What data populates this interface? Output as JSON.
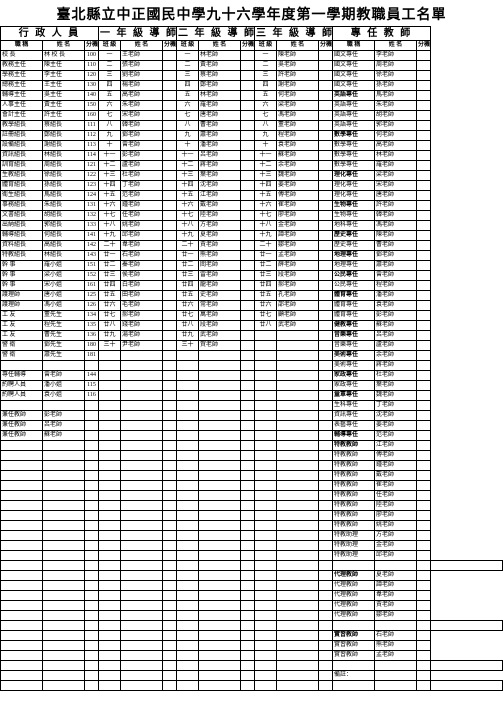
{
  "title": "臺北縣立中正國民中學九十六學年度第一學期教職員工名單",
  "sections": [
    "行 政 人 員",
    "一 年 級 導 師",
    "二 年 級 導 師",
    "三 年 級 導 師",
    "專 任 教 師"
  ],
  "headers": [
    "職 稱",
    "姓 名",
    "分機",
    "班 級",
    "姓 名",
    "分機",
    "班 級",
    "姓 名",
    "分機",
    "班 級",
    "姓 名",
    "分機",
    "職 稱",
    "姓 名",
    "分機"
  ],
  "rows": [
    [
      "校 長",
      "林 校 長",
      "100",
      "一",
      "王老師",
      "",
      "一",
      "林老師",
      "",
      "一",
      "陳老師",
      "",
      "國文專任",
      "李老師",
      ""
    ],
    [
      "教務主任",
      "陳主任",
      "110",
      "二",
      "張老師",
      "",
      "二",
      "黃老師",
      "",
      "二",
      "吳老師",
      "",
      "國文專任",
      "周老師",
      ""
    ],
    [
      "學務主任",
      "李主任",
      "120",
      "三",
      "劉老師",
      "",
      "三",
      "蔡老師",
      "",
      "三",
      "許老師",
      "",
      "國文專任",
      "徐老師",
      ""
    ],
    [
      "總務主任",
      "王主任",
      "130",
      "四",
      "楊老師",
      "",
      "四",
      "鄭老師",
      "",
      "四",
      "謝老師",
      "",
      "國文專任",
      "孫老師",
      ""
    ],
    [
      "輔導主任",
      "吳主任",
      "140",
      "五",
      "高老師",
      "",
      "五",
      "林老師",
      "",
      "五",
      "何老師",
      "",
      "英語專任",
      "馬老師",
      ""
    ],
    [
      "人事主任",
      "黃主任",
      "150",
      "六",
      "朱老師",
      "",
      "六",
      "羅老師",
      "",
      "六",
      "梁老師",
      "",
      "英語專任",
      "朱老師",
      ""
    ],
    [
      "會計主任",
      "許主任",
      "160",
      "七",
      "宋老師",
      "",
      "七",
      "唐老師",
      "",
      "七",
      "馮老師",
      "",
      "英語專任",
      "胡老師",
      ""
    ],
    [
      "教學組長",
      "蔡組長",
      "111",
      "八",
      "韓老師",
      "",
      "八",
      "曹老師",
      "",
      "八",
      "董老師",
      "",
      "英語專任",
      "郭老師",
      ""
    ],
    [
      "註冊組長",
      "鄭組長",
      "112",
      "九",
      "鄧老師",
      "",
      "九",
      "蕭老師",
      "",
      "九",
      "程老師",
      "",
      "數學專任",
      "何老師",
      ""
    ],
    [
      "設備組長",
      "謝組長",
      "113",
      "十",
      "曾老師",
      "",
      "十",
      "潘老師",
      "",
      "十",
      "袁老師",
      "",
      "數學專任",
      "高老師",
      ""
    ],
    [
      "資訊組長",
      "林組長",
      "114",
      "十一",
      "彭老師",
      "",
      "十一",
      "呂老師",
      "",
      "十一",
      "蘇老師",
      "",
      "數學專任",
      "林老師",
      ""
    ],
    [
      "訓育組長",
      "周組長",
      "121",
      "十二",
      "盧老師",
      "",
      "十二",
      "蔣老師",
      "",
      "十二",
      "余老師",
      "",
      "數學專任",
      "羅老師",
      ""
    ],
    [
      "生教組長",
      "徐組長",
      "122",
      "十三",
      "杜老師",
      "",
      "十三",
      "葉老師",
      "",
      "十三",
      "魏老師",
      "",
      "理化專任",
      "梁老師",
      ""
    ],
    [
      "體育組長",
      "孫組長",
      "123",
      "十四",
      "丁老師",
      "",
      "十四",
      "沈老師",
      "",
      "十四",
      "姜老師",
      "",
      "理化專任",
      "宋老師",
      ""
    ],
    [
      "衛生組長",
      "馬組長",
      "124",
      "十五",
      "范老師",
      "",
      "十五",
      "江老師",
      "",
      "十五",
      "傅老師",
      "",
      "理化專任",
      "唐老師",
      ""
    ],
    [
      "事務組長",
      "朱組長",
      "131",
      "十六",
      "鍾老師",
      "",
      "十六",
      "戴老師",
      "",
      "十六",
      "崔老師",
      "",
      "生物專任",
      "許老師",
      ""
    ],
    [
      "文書組長",
      "胡組長",
      "132",
      "十七",
      "任老師",
      "",
      "十七",
      "陸老師",
      "",
      "十七",
      "廖老師",
      "",
      "生物專任",
      "韓老師",
      ""
    ],
    [
      "出納組長",
      "郭組長",
      "133",
      "十八",
      "姚老師",
      "",
      "十八",
      "方老師",
      "",
      "十八",
      "金老師",
      "",
      "地科專任",
      "馮老師",
      ""
    ],
    [
      "輔導組長",
      "何組長",
      "141",
      "十九",
      "邱老師",
      "",
      "十九",
      "夏老師",
      "",
      "十九",
      "譚老師",
      "",
      "歷史專任",
      "陳老師",
      ""
    ],
    [
      "資料組長",
      "高組長",
      "142",
      "二十",
      "韋老師",
      "",
      "二十",
      "賈老師",
      "",
      "二十",
      "鄒老師",
      "",
      "歷史專任",
      "曹老師",
      ""
    ],
    [
      "特教組長",
      "林組長",
      "143",
      "廿一",
      "石老師",
      "",
      "廿一",
      "熊老師",
      "",
      "廿一",
      "孟老師",
      "",
      "地理專任",
      "鄧老師",
      ""
    ],
    [
      "幹 事",
      "羅小姐",
      "151",
      "廿二",
      "秦老師",
      "",
      "廿二",
      "閻老師",
      "",
      "廿二",
      "薛老師",
      "",
      "地理專任",
      "蕭老師",
      ""
    ],
    [
      "幹 事",
      "梁小姐",
      "152",
      "廿三",
      "侯老師",
      "",
      "廿三",
      "雷老師",
      "",
      "廿三",
      "段老師",
      "",
      "公民專任",
      "曾老師",
      ""
    ],
    [
      "幹 事",
      "宋小姐",
      "161",
      "廿四",
      "白老師",
      "",
      "廿四",
      "龍老師",
      "",
      "廿四",
      "郝老師",
      "",
      "公民專任",
      "程老師",
      ""
    ],
    [
      "護理師",
      "唐小姐",
      "125",
      "廿五",
      "田老師",
      "",
      "廿五",
      "史老師",
      "",
      "廿五",
      "孔老師",
      "",
      "體育專任",
      "潘老師",
      ""
    ],
    [
      "護理師",
      "馮小姐",
      "126",
      "廿六",
      "毛老師",
      "",
      "廿六",
      "常老師",
      "",
      "廿六",
      "邵老師",
      "",
      "體育專任",
      "袁老師",
      ""
    ],
    [
      "工 友",
      "董先生",
      "134",
      "廿七",
      "郝老師",
      "",
      "廿七",
      "萬老師",
      "",
      "廿七",
      "顧老師",
      "",
      "體育專任",
      "彭老師",
      ""
    ],
    [
      "工 友",
      "程先生",
      "135",
      "廿八",
      "錢老師",
      "",
      "廿八",
      "段老師",
      "",
      "廿八",
      "武老師",
      "",
      "健教專任",
      "蘇老師",
      ""
    ],
    [
      "工 友",
      "曹先生",
      "136",
      "廿九",
      "湯老師",
      "",
      "廿九",
      "武老師",
      "",
      "",
      "",
      "",
      "音樂專任",
      "呂老師",
      ""
    ],
    [
      "警 衛",
      "鄧先生",
      "180",
      "三十",
      "尹老師",
      "",
      "三十",
      "賀老師",
      "",
      "",
      "",
      "",
      "音樂專任",
      "盧老師",
      ""
    ],
    [
      "警 衛",
      "蕭先生",
      "181",
      "",
      "",
      "",
      "",
      "",
      "",
      "",
      "",
      "",
      "美術專任",
      "余老師",
      ""
    ],
    [
      "",
      "",
      "",
      "",
      "",
      "",
      "",
      "",
      "",
      "",
      "",
      "",
      "美術專任",
      "蔣老師",
      ""
    ],
    [
      "專任輔導",
      "曾老師",
      "144",
      "",
      "",
      "",
      "",
      "",
      "",
      "",
      "",
      "",
      "家政專任",
      "杜老師",
      ""
    ],
    [
      "約聘人員",
      "潘小姐",
      "115",
      "",
      "",
      "",
      "",
      "",
      "",
      "",
      "",
      "",
      "家政專任",
      "葉老師",
      ""
    ],
    [
      "約聘人員",
      "袁小姐",
      "116",
      "",
      "",
      "",
      "",
      "",
      "",
      "",
      "",
      "",
      "童軍專任",
      "魏老師",
      ""
    ],
    [
      "",
      "",
      "",
      "",
      "",
      "",
      "",
      "",
      "",
      "",
      "",
      "",
      "生科專任",
      "丁老師",
      ""
    ],
    [
      "兼任教師",
      "彭老師",
      "",
      "",
      "",
      "",
      "",
      "",
      "",
      "",
      "",
      "",
      "資訊專任",
      "沈老師",
      ""
    ],
    [
      "兼任教師",
      "呂老師",
      "",
      "",
      "",
      "",
      "",
      "",
      "",
      "",
      "",
      "",
      "表藝專任",
      "姜老師",
      ""
    ],
    [
      "兼任教師",
      "蘇老師",
      "",
      "",
      "",
      "",
      "",
      "",
      "",
      "",
      "",
      "",
      "輔導專任",
      "范老師",
      ""
    ],
    [
      "",
      "",
      "",
      "",
      "",
      "",
      "",
      "",
      "",
      "",
      "",
      "",
      "特教教師",
      "江老師",
      ""
    ],
    [
      "",
      "",
      "",
      "",
      "",
      "",
      "",
      "",
      "",
      "",
      "",
      "",
      "特教教師",
      "傅老師",
      ""
    ],
    [
      "",
      "",
      "",
      "",
      "",
      "",
      "",
      "",
      "",
      "",
      "",
      "",
      "特教教師",
      "鍾老師",
      ""
    ],
    [
      "",
      "",
      "",
      "",
      "",
      "",
      "",
      "",
      "",
      "",
      "",
      "",
      "特教教師",
      "戴老師",
      ""
    ],
    [
      "",
      "",
      "",
      "",
      "",
      "",
      "",
      "",
      "",
      "",
      "",
      "",
      "特教教師",
      "崔老師",
      ""
    ],
    [
      "",
      "",
      "",
      "",
      "",
      "",
      "",
      "",
      "",
      "",
      "",
      "",
      "特教教師",
      "任老師",
      ""
    ],
    [
      "",
      "",
      "",
      "",
      "",
      "",
      "",
      "",
      "",
      "",
      "",
      "",
      "特教教師",
      "陸老師",
      ""
    ],
    [
      "",
      "",
      "",
      "",
      "",
      "",
      "",
      "",
      "",
      "",
      "",
      "",
      "特教教師",
      "廖老師",
      ""
    ],
    [
      "",
      "",
      "",
      "",
      "",
      "",
      "",
      "",
      "",
      "",
      "",
      "",
      "特教教師",
      "姚老師",
      ""
    ],
    [
      "",
      "",
      "",
      "",
      "",
      "",
      "",
      "",
      "",
      "",
      "",
      "",
      "特教助理",
      "方老師",
      ""
    ],
    [
      "",
      "",
      "",
      "",
      "",
      "",
      "",
      "",
      "",
      "",
      "",
      "",
      "特教助理",
      "金老師",
      ""
    ],
    [
      "",
      "",
      "",
      "",
      "",
      "",
      "",
      "",
      "",
      "",
      "",
      "",
      "特教助理",
      "邱老師",
      ""
    ],
    [
      "",
      "",
      "",
      "",
      "",
      "",
      "",
      "",
      "",
      "",
      "",
      "",
      "",
      "",
      "",
      ""
    ],
    [
      "",
      "",
      "",
      "",
      "",
      "",
      "",
      "",
      "",
      "",
      "",
      "",
      "代理教師",
      "夏老師",
      ""
    ],
    [
      "",
      "",
      "",
      "",
      "",
      "",
      "",
      "",
      "",
      "",
      "",
      "",
      "代理教師",
      "譚老師",
      ""
    ],
    [
      "",
      "",
      "",
      "",
      "",
      "",
      "",
      "",
      "",
      "",
      "",
      "",
      "代理教師",
      "韋老師",
      ""
    ],
    [
      "",
      "",
      "",
      "",
      "",
      "",
      "",
      "",
      "",
      "",
      "",
      "",
      "代理教師",
      "賈老師",
      ""
    ],
    [
      "",
      "",
      "",
      "",
      "",
      "",
      "",
      "",
      "",
      "",
      "",
      "",
      "代理教師",
      "鄒老師",
      ""
    ],
    [
      "",
      "",
      "",
      "",
      "",
      "",
      "",
      "",
      "",
      "",
      "",
      "",
      "",
      "",
      "",
      ""
    ],
    [
      "",
      "",
      "",
      "",
      "",
      "",
      "",
      "",
      "",
      "",
      "",
      "",
      "實習教師",
      "石老師",
      ""
    ],
    [
      "",
      "",
      "",
      "",
      "",
      "",
      "",
      "",
      "",
      "",
      "",
      "",
      "實習教師",
      "熊老師",
      ""
    ],
    [
      "",
      "",
      "",
      "",
      "",
      "",
      "",
      "",
      "",
      "",
      "",
      "",
      "實習教師",
      "孟老師",
      ""
    ],
    [
      "",
      "",
      "",
      "",
      "",
      "",
      "",
      "",
      "",
      "",
      "",
      "",
      "",
      "",
      "",
      ""
    ],
    [
      "",
      "",
      "",
      "",
      "",
      "",
      "",
      "",
      "",
      "",
      "",
      "",
      "備註：",
      "",
      ""
    ],
    [
      "",
      "",
      "",
      "",
      "",
      "",
      "",
      "",
      "",
      "",
      "",
      "",
      "",
      "",
      "",
      ""
    ]
  ],
  "boldSpecialistRows": [
    4,
    8,
    12,
    15,
    18,
    20,
    22,
    24,
    27,
    28,
    30,
    32,
    34,
    38,
    39,
    51,
    52,
    58
  ]
}
